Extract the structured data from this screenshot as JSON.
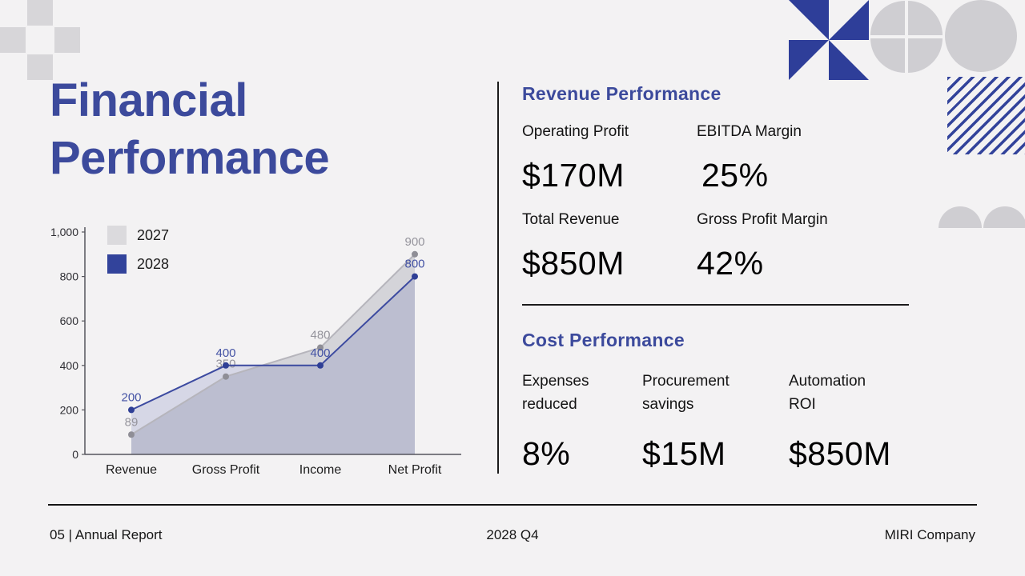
{
  "slide": {
    "title_line1": "Financial",
    "title_line2": "Performance"
  },
  "chart_data": {
    "type": "line",
    "categories": [
      "Revenue",
      "Gross Profit",
      "Income",
      "Net Profit"
    ],
    "series": [
      {
        "name": "2027",
        "values": [
          89,
          350,
          480,
          900
        ],
        "swatch_color": "#dbdadd",
        "line_color": "#b6b5bc",
        "dot_color": "#8f8e96",
        "fill_color": "#b6b5bf",
        "fill_opacity": 0.5,
        "label_color": "#95949c"
      },
      {
        "name": "2028",
        "values": [
          200,
          400,
          400,
          800
        ],
        "swatch_color": "#32439b",
        "line_color": "#3c4aa0",
        "dot_color": "#2f3f96",
        "fill_color": "#3c4aa0",
        "fill_opacity": 0.16,
        "label_color": "#4352a4"
      }
    ],
    "ylim": [
      0,
      1000
    ],
    "yticks": [
      0,
      200,
      400,
      600,
      800,
      1000
    ],
    "ytick_labels": [
      "0",
      "200",
      "400",
      "600",
      "800",
      "1,000"
    ],
    "legend_position": "top-left",
    "grid": false,
    "title": "",
    "xlabel": "",
    "ylabel": ""
  },
  "revenue_section": {
    "heading": "Revenue Performance",
    "metrics": [
      {
        "label": "Operating Profit",
        "value": "$170M"
      },
      {
        "label": "EBITDA Margin",
        "value": "25%"
      },
      {
        "label": "Total Revenue",
        "value": "$850M"
      },
      {
        "label": "Gross Profit Margin",
        "value": "42%"
      }
    ]
  },
  "cost_section": {
    "heading": "Cost Performance",
    "metrics": [
      {
        "label": "Expenses reduced",
        "value": "8%"
      },
      {
        "label": "Procurement savings",
        "value": "$15M"
      },
      {
        "label": "Automation ROI",
        "value": "$850M"
      }
    ]
  },
  "footer": {
    "left": "05 | Annual Report",
    "center": "2028 Q4",
    "right": "MIRI Company"
  },
  "colors": {
    "accent": "#3c4a9c",
    "decor_blue": "#2e3e99",
    "decor_gray": "#d2d1d5"
  }
}
